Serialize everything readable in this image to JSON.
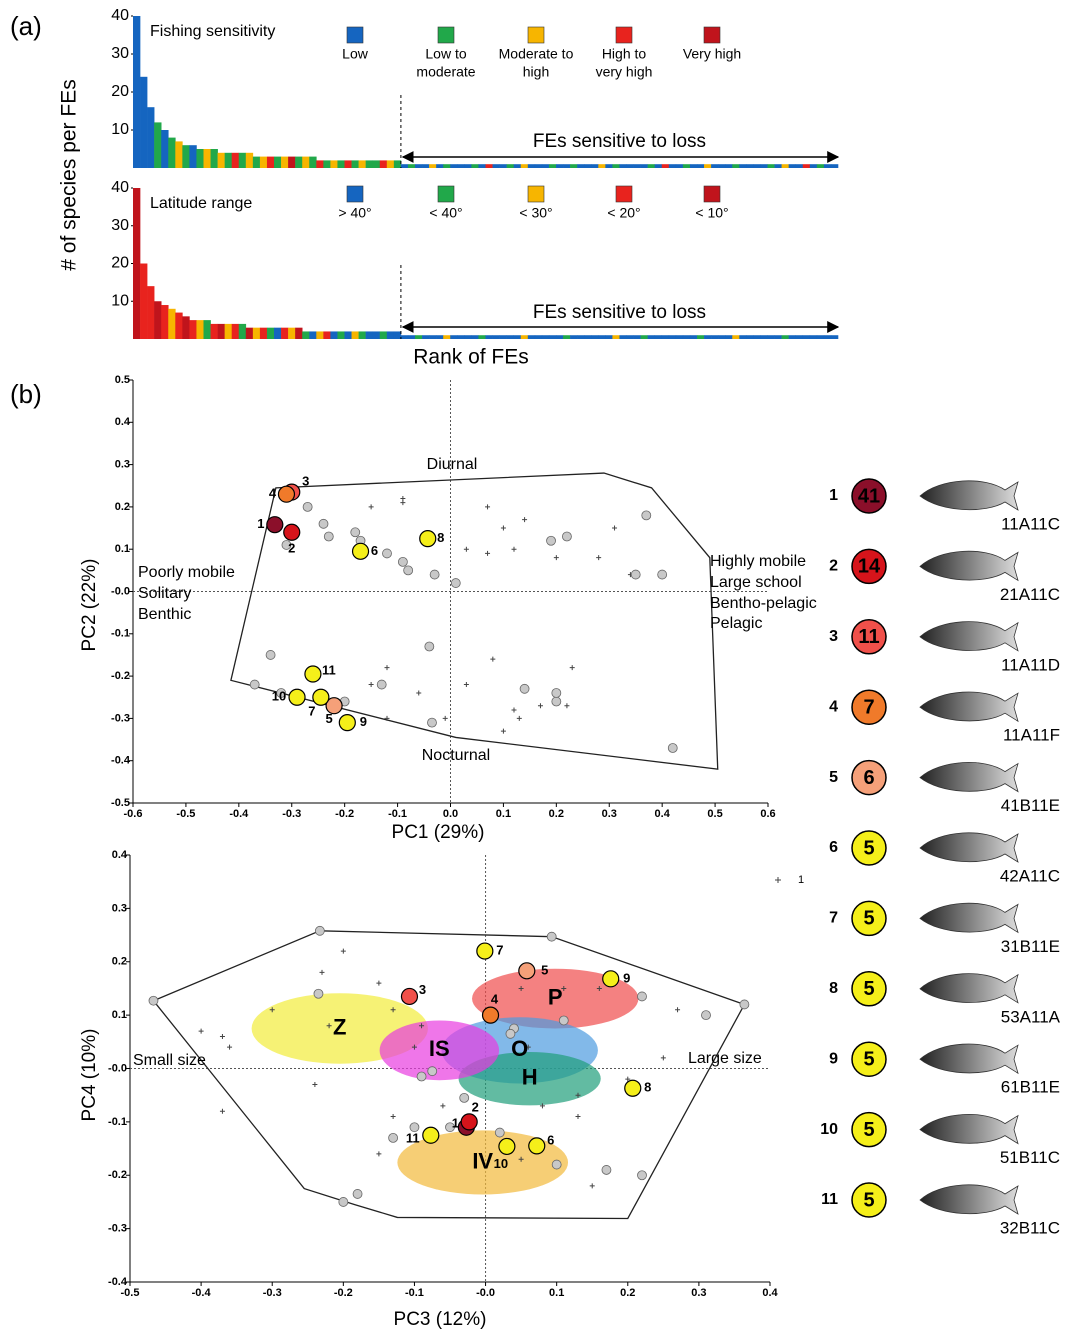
{
  "panel_a": {
    "label": "(a)",
    "y_label": "# of species per FEs",
    "x_label": "Rank of FEs"
  },
  "panel_b": {
    "label": "(b)"
  },
  "chart_data": [
    {
      "type": "bar",
      "title": "Fishing sensitivity",
      "annotation": "FEs sensitive to loss",
      "ylim": [
        0,
        40
      ],
      "yticks": [
        10,
        20,
        30,
        40
      ],
      "legend": [
        {
          "label": [
            "Low"
          ],
          "color": "#1565c0"
        },
        {
          "label": [
            "Low to",
            "moderate"
          ],
          "color": "#21a84a"
        },
        {
          "label": [
            "Moderate to",
            "high"
          ],
          "color": "#f7b500"
        },
        {
          "label": [
            "High to",
            "very high"
          ],
          "color": "#e8231e"
        },
        {
          "label": [
            "Very high"
          ],
          "color": "#c0141c"
        }
      ],
      "values": [
        40,
        24,
        16,
        12,
        10,
        8,
        7,
        6,
        6,
        5,
        5,
        5,
        4,
        4,
        4,
        4,
        4,
        3,
        3,
        3,
        3,
        3,
        3,
        3,
        3,
        3,
        2,
        2,
        2,
        2,
        2,
        2,
        2,
        2,
        2,
        2,
        2,
        2,
        1,
        1,
        1,
        1,
        1,
        1,
        1,
        1,
        1,
        1,
        1,
        1,
        1,
        1,
        1,
        1,
        1,
        1,
        1,
        1,
        1,
        1,
        1,
        1,
        1,
        1,
        1,
        1,
        1,
        1,
        1,
        1,
        1,
        1,
        1,
        1,
        1,
        1,
        1,
        1,
        1,
        1,
        1,
        1,
        1,
        1,
        1,
        1,
        1,
        1,
        1,
        1,
        1,
        1,
        1,
        1,
        1,
        1,
        1,
        1,
        1,
        1
      ],
      "groups": [
        0,
        0,
        0,
        1,
        0,
        1,
        2,
        1,
        0,
        1,
        2,
        1,
        2,
        1,
        3,
        1,
        2,
        1,
        2,
        3,
        1,
        2,
        4,
        1,
        2,
        1,
        3,
        1,
        2,
        1,
        3,
        1,
        2,
        1,
        1,
        3,
        2,
        1,
        0,
        1,
        0,
        0,
        2,
        0,
        1,
        0,
        0,
        0,
        1,
        0,
        3,
        0,
        0,
        1,
        0,
        2,
        0,
        0,
        0,
        1,
        0,
        0,
        1,
        0,
        0,
        0,
        2,
        0,
        1,
        0,
        0,
        0,
        0,
        1,
        0,
        3,
        0,
        0,
        1,
        0,
        0,
        2,
        0,
        0,
        0,
        1,
        0,
        0,
        0,
        0,
        1,
        0,
        2,
        0,
        0,
        3,
        0,
        1,
        0,
        0
      ]
    },
    {
      "type": "bar",
      "title": "Latitude range",
      "annotation": "FEs sensitive to loss",
      "ylim": [
        0,
        40
      ],
      "yticks": [
        10,
        20,
        30,
        40
      ],
      "legend": [
        {
          "label": [
            "> 40°"
          ],
          "color": "#1565c0"
        },
        {
          "label": [
            "< 40°"
          ],
          "color": "#21a84a"
        },
        {
          "label": [
            "< 30°"
          ],
          "color": "#f7b500"
        },
        {
          "label": [
            "< 20°"
          ],
          "color": "#e8231e"
        },
        {
          "label": [
            "< 10°"
          ],
          "color": "#c0141c"
        }
      ],
      "values": [
        40,
        20,
        14,
        10,
        9,
        8,
        7,
        6,
        5,
        5,
        5,
        4,
        4,
        4,
        4,
        4,
        3,
        3,
        3,
        3,
        3,
        3,
        3,
        3,
        2,
        2,
        2,
        2,
        2,
        2,
        2,
        2,
        2,
        2,
        2,
        2,
        2,
        2,
        1,
        1,
        1,
        1,
        1,
        1,
        1,
        1,
        1,
        1,
        1,
        1,
        1,
        1,
        1,
        1,
        1,
        1,
        1,
        1,
        1,
        1,
        1,
        1,
        1,
        1,
        1,
        1,
        1,
        1,
        1,
        1,
        1,
        1,
        1,
        1,
        1,
        1,
        1,
        1,
        1,
        1,
        1,
        1,
        1,
        1,
        1,
        1,
        1,
        1,
        1,
        1,
        1,
        1,
        1,
        1,
        1,
        1,
        1,
        1,
        1,
        1
      ],
      "groups": [
        4,
        3,
        3,
        4,
        3,
        2,
        3,
        4,
        3,
        2,
        1,
        3,
        4,
        2,
        3,
        1,
        4,
        2,
        3,
        1,
        0,
        3,
        2,
        4,
        1,
        0,
        2,
        3,
        0,
        1,
        0,
        2,
        1,
        0,
        0,
        1,
        0,
        0,
        0,
        0,
        1,
        0,
        0,
        0,
        2,
        0,
        0,
        0,
        0,
        1,
        0,
        0,
        0,
        0,
        0,
        2,
        0,
        0,
        0,
        0,
        0,
        1,
        0,
        0,
        0,
        0,
        0,
        0,
        2,
        0,
        0,
        0,
        1,
        0,
        0,
        0,
        0,
        0,
        0,
        0,
        1,
        0,
        0,
        0,
        0,
        2,
        0,
        0,
        0,
        0,
        0,
        0,
        1,
        0,
        0,
        0,
        0,
        0,
        0,
        0
      ]
    },
    {
      "type": "scatter",
      "x_label": "PC1 (29%)",
      "y_label": "PC2 (22%)",
      "xlim": [
        -0.6,
        0.6
      ],
      "ylim": [
        -0.5,
        0.5
      ],
      "xticks": [
        -0.6,
        -0.5,
        -0.4,
        -0.3,
        -0.2,
        -0.1,
        {
          "value": 0,
          "label": "0.0"
        },
        0.1,
        0.2,
        0.3,
        0.4,
        0.5,
        0.6
      ],
      "yticks": [
        -0.5,
        -0.4,
        -0.3,
        -0.2,
        -0.1,
        {
          "value": 0,
          "label": "-0.0"
        },
        0.1,
        0.2,
        0.3,
        0.4,
        0.5
      ],
      "annotations": [
        "Diurnal",
        "Nocturnal",
        "Poorly mobile",
        "Solitary",
        "Benthic",
        "Highly mobile",
        "Large school",
        "Bentho-pelagic",
        "Pelagic"
      ],
      "hull": {
        "x": [
          -0.33,
          0.29,
          0.38,
          0.49,
          0.505,
          0.01,
          -0.415
        ],
        "y": [
          0.245,
          0.28,
          0.245,
          0.08,
          -0.42,
          -0.345,
          -0.21
        ]
      },
      "points": {
        "x": [
          -0.24,
          -0.18,
          -0.17,
          -0.12,
          -0.08,
          -0.09,
          -0.03,
          0.01,
          0.19,
          0.22,
          0.37,
          0.35,
          0.4,
          -0.34,
          -0.37,
          -0.32,
          -0.2,
          -0.13,
          -0.04,
          -0.035,
          0.14,
          0.2,
          0.2,
          0.42,
          -0.27,
          -0.31,
          -0.23
        ],
        "y": [
          0.16,
          0.14,
          0.12,
          0.09,
          0.05,
          0.07,
          0.04,
          0.02,
          0.12,
          0.13,
          0.18,
          0.04,
          0.04,
          -0.15,
          -0.22,
          -0.24,
          -0.26,
          -0.22,
          -0.13,
          -0.31,
          -0.23,
          -0.26,
          -0.24,
          -0.37,
          0.2,
          0.11,
          0.13
        ]
      },
      "crosses": {
        "x": [
          -0.15,
          -0.09,
          -0.09,
          0.07,
          0.1,
          0.14,
          0.03,
          0.07,
          0.12,
          0.2,
          0.28,
          0.31,
          0.34,
          -0.12,
          -0.15,
          0.03,
          0.08,
          0.12,
          0.13,
          0.17,
          0.22,
          0.1,
          -0.06,
          0.23,
          -0.12,
          -0.01
        ],
        "y": [
          0.2,
          0.22,
          0.21,
          0.2,
          0.15,
          0.17,
          0.1,
          0.09,
          0.1,
          0.08,
          0.08,
          0.15,
          0.04,
          -0.18,
          -0.22,
          -0.22,
          -0.16,
          -0.28,
          -0.3,
          -0.27,
          -0.27,
          -0.33,
          -0.24,
          -0.18,
          -0.3,
          -0.3
        ]
      },
      "highlights": {
        "labels": [
          "1",
          "2",
          "3",
          "4",
          "5",
          "6",
          "7",
          "8",
          "9",
          "10",
          "11"
        ],
        "colors": [
          "#8b0f2a",
          "#d6141b",
          "#f0504a",
          "#f07a2a",
          "#f5a079",
          "#f5ef1a",
          "#f5ef1a",
          "#f5ef1a",
          "#f5ef1a",
          "#f5ef1a",
          "#f5ef1a"
        ],
        "x": [
          -0.332,
          -0.3,
          -0.3,
          -0.31,
          -0.22,
          -0.17,
          -0.245,
          -0.043,
          -0.195,
          -0.29,
          -0.26
        ],
        "y": [
          0.158,
          0.14,
          0.235,
          0.23,
          -0.27,
          0.095,
          -0.25,
          0.125,
          -0.31,
          -0.25,
          -0.195
        ]
      }
    },
    {
      "type": "scatter",
      "x_label": "PC3 (12%)",
      "y_label": "PC4 (10%)",
      "xlim": [
        -0.5,
        0.4
      ],
      "ylim": [
        -0.4,
        0.4
      ],
      "xticks": [
        -0.5,
        -0.4,
        -0.3,
        -0.2,
        -0.1,
        {
          "value": 0,
          "label": "-0.0"
        },
        0.1,
        0.2,
        0.3,
        0.4
      ],
      "yticks": [
        -0.4,
        -0.3,
        -0.2,
        -0.1,
        {
          "value": 0,
          "label": "-0.0"
        },
        0.1,
        0.2,
        0.3,
        0.4
      ],
      "annotations": [
        "Small size",
        "Large size"
      ],
      "side_marker_label": "1",
      "ellipses": [
        {
          "label": "Z",
          "color": "#f2ec3a",
          "cx": -0.205,
          "cy": 0.075,
          "rx": 0.124,
          "ry": 0.066
        },
        {
          "label": "P",
          "color": "#ef4b4b",
          "cx": 0.098,
          "cy": 0.131,
          "rx": 0.117,
          "ry": 0.056
        },
        {
          "label": "O",
          "color": "#4d9be0",
          "cx": 0.048,
          "cy": 0.034,
          "rx": 0.11,
          "ry": 0.062
        },
        {
          "label": "H",
          "color": "#1f9e7a",
          "cx": 0.062,
          "cy": -0.019,
          "rx": 0.1,
          "ry": 0.05
        },
        {
          "label": "IS",
          "color": "#e83ce0",
          "cx": -0.065,
          "cy": 0.034,
          "rx": 0.084,
          "ry": 0.056
        },
        {
          "label": "IV",
          "color": "#f2b93a",
          "cx": -0.004,
          "cy": -0.176,
          "rx": 0.12,
          "ry": 0.06
        }
      ],
      "hull": {
        "x": [
          -0.467,
          -0.233,
          0.093,
          0.364,
          0.2,
          -0.124,
          -0.184,
          -0.255
        ],
        "y": [
          0.127,
          0.258,
          0.247,
          0.12,
          -0.281,
          -0.279,
          -0.255,
          -0.225
        ]
      },
      "points": {
        "x": [
          -0.467,
          -0.233,
          0.093,
          0.364,
          -0.235,
          0.22,
          0.31,
          0.11,
          0.04,
          0.035,
          -0.09,
          -0.075,
          -0.03,
          -0.13,
          -0.1,
          0.02,
          -0.18,
          -0.2,
          0.17,
          0.22,
          0.1,
          -0.05
        ],
        "y": [
          0.127,
          0.258,
          0.247,
          0.12,
          0.14,
          0.135,
          0.1,
          0.09,
          0.075,
          0.065,
          -0.015,
          -0.005,
          -0.055,
          -0.13,
          -0.11,
          -0.12,
          -0.235,
          -0.25,
          -0.19,
          -0.2,
          -0.18,
          -0.11
        ]
      },
      "crosses": {
        "x": [
          -0.23,
          -0.37,
          -0.4,
          -0.36,
          -0.3,
          -0.22,
          -0.13,
          -0.09,
          -0.1,
          0.05,
          0.11,
          0.16,
          0.2,
          0.27,
          0.25,
          0.13,
          0.08,
          -0.13,
          -0.06,
          -0.15,
          0.05,
          0.13,
          0.15,
          -0.37,
          -0.24,
          -0.2,
          0.06,
          -0.15
        ],
        "y": [
          0.18,
          0.06,
          0.07,
          0.04,
          0.11,
          0.08,
          0.11,
          0.08,
          0.04,
          0.15,
          0.15,
          0.15,
          -0.02,
          0.11,
          0.02,
          -0.05,
          -0.07,
          -0.09,
          -0.07,
          -0.16,
          -0.17,
          -0.09,
          -0.22,
          -0.08,
          -0.03,
          0.22,
          0.04,
          0.16
        ]
      },
      "highlights": {
        "labels": [
          "1",
          "2",
          "3",
          "4",
          "5",
          "6",
          "7",
          "8",
          "9",
          "10",
          "11"
        ],
        "colors": [
          "#8b0f2a",
          "#d6141b",
          "#f0504a",
          "#f07a2a",
          "#f5a079",
          "#f5ef1a",
          "#f5ef1a",
          "#f5ef1a",
          "#f5ef1a",
          "#f5ef1a",
          "#f5ef1a"
        ],
        "x": [
          -0.027,
          -0.023,
          -0.107,
          0.007,
          0.058,
          0.072,
          -0.001,
          0.207,
          0.176,
          0.03,
          -0.077
        ],
        "y": [
          -0.11,
          -0.1,
          0.135,
          0.1,
          0.183,
          -0.145,
          0.22,
          -0.037,
          0.168,
          -0.146,
          -0.125
        ]
      }
    }
  ],
  "fe_table": {
    "rows": [
      {
        "rank": "1",
        "species": "41",
        "code": "11A11C"
      },
      {
        "rank": "2",
        "species": "14",
        "code": "21A11C"
      },
      {
        "rank": "3",
        "species": "11",
        "code": "11A11D"
      },
      {
        "rank": "4",
        "species": "7",
        "code": "11A11F"
      },
      {
        "rank": "5",
        "species": "6",
        "code": "41B11E"
      },
      {
        "rank": "6",
        "species": "5",
        "code": "42A11C"
      },
      {
        "rank": "7",
        "species": "5",
        "code": "31B11E"
      },
      {
        "rank": "8",
        "species": "5",
        "code": "53A11A"
      },
      {
        "rank": "9",
        "species": "5",
        "code": "61B11E"
      },
      {
        "rank": "10",
        "species": "5",
        "code": "51B11C"
      },
      {
        "rank": "11",
        "species": "5",
        "code": "32B11C"
      }
    ]
  }
}
